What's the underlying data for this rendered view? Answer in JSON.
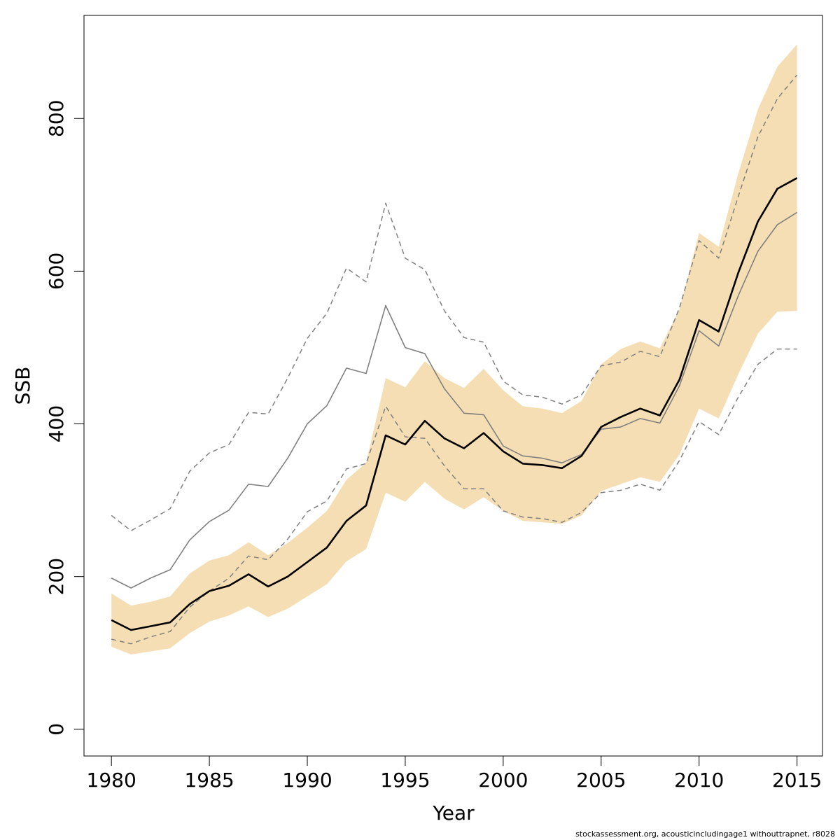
{
  "chart_data": {
    "type": "line",
    "xlabel": "Year",
    "ylabel": "SSB",
    "xlim": [
      1978.6,
      2016.3
    ],
    "ylim": [
      -35,
      935
    ],
    "x_ticks": [
      "1980",
      "1985",
      "1990",
      "1995",
      "2000",
      "2005",
      "2010",
      "2015"
    ],
    "x_tick_values": [
      1980,
      1985,
      1990,
      1995,
      2000,
      2005,
      2010,
      2015
    ],
    "y_ticks": [
      "0",
      "200",
      "400",
      "600",
      "800"
    ],
    "y_tick_values": [
      0,
      200,
      400,
      600,
      800
    ],
    "grid": false,
    "legend": "none",
    "x": [
      1980,
      1981,
      1982,
      1983,
      1984,
      1985,
      1986,
      1987,
      1988,
      1989,
      1990,
      1991,
      1992,
      1993,
      1994,
      1995,
      1996,
      1997,
      1998,
      1999,
      2000,
      2001,
      2002,
      2003,
      2004,
      2005,
      2006,
      2007,
      2008,
      2009,
      2010,
      2011,
      2012,
      2013,
      2014,
      2015
    ],
    "band": {
      "color": "#f5deb3",
      "lower": [
        108,
        98,
        102,
        106,
        126,
        141,
        149,
        161,
        147,
        158,
        174,
        190,
        220,
        236,
        310,
        298,
        324,
        302,
        288,
        304,
        286,
        273,
        271,
        269,
        280,
        312,
        321,
        330,
        324,
        360,
        420,
        407,
        465,
        518,
        547,
        548
      ],
      "upper": [
        178,
        162,
        167,
        174,
        204,
        221,
        228,
        245,
        228,
        244,
        264,
        286,
        327,
        349,
        460,
        448,
        482,
        460,
        447,
        472,
        444,
        423,
        420,
        414,
        430,
        478,
        498,
        508,
        499,
        550,
        650,
        632,
        728,
        812,
        868,
        897
      ]
    },
    "series": [
      {
        "style": "solid-black",
        "color": "#000000",
        "values": [
          143,
          130,
          135,
          140,
          164,
          181,
          188,
          203,
          187,
          200,
          219,
          238,
          273,
          293,
          385,
          373,
          404,
          381,
          368,
          388,
          364,
          348,
          346,
          342,
          358,
          396,
          409,
          420,
          411,
          458,
          536,
          521,
          598,
          665,
          708,
          722
        ]
      },
      {
        "style": "solid-grey",
        "color": "#808080",
        "values": [
          198,
          185,
          198,
          209,
          248,
          272,
          287,
          321,
          318,
          355,
          400,
          424,
          473,
          466,
          555,
          500,
          492,
          446,
          414,
          412,
          371,
          358,
          355,
          349,
          360,
          393,
          396,
          407,
          401,
          450,
          522,
          502,
          568,
          626,
          661,
          677
        ]
      },
      {
        "style": "dashed-grey-upper",
        "color": "#808080",
        "values": [
          280,
          260,
          274,
          289,
          338,
          362,
          373,
          415,
          413,
          460,
          512,
          545,
          604,
          586,
          689,
          617,
          602,
          548,
          513,
          507,
          456,
          438,
          435,
          426,
          438,
          476,
          481,
          495,
          488,
          552,
          640,
          617,
          698,
          776,
          826,
          857
        ]
      },
      {
        "style": "dashed-grey-lower",
        "color": "#808080",
        "values": [
          118,
          112,
          121,
          128,
          160,
          181,
          198,
          227,
          222,
          249,
          285,
          299,
          341,
          348,
          423,
          383,
          381,
          345,
          315,
          315,
          286,
          278,
          276,
          271,
          284,
          310,
          313,
          321,
          313,
          352,
          403,
          386,
          435,
          478,
          498,
          498
        ]
      }
    ],
    "caption": "stockassessment.org, acousticincludingage1  withouttrapnet, r8028"
  }
}
